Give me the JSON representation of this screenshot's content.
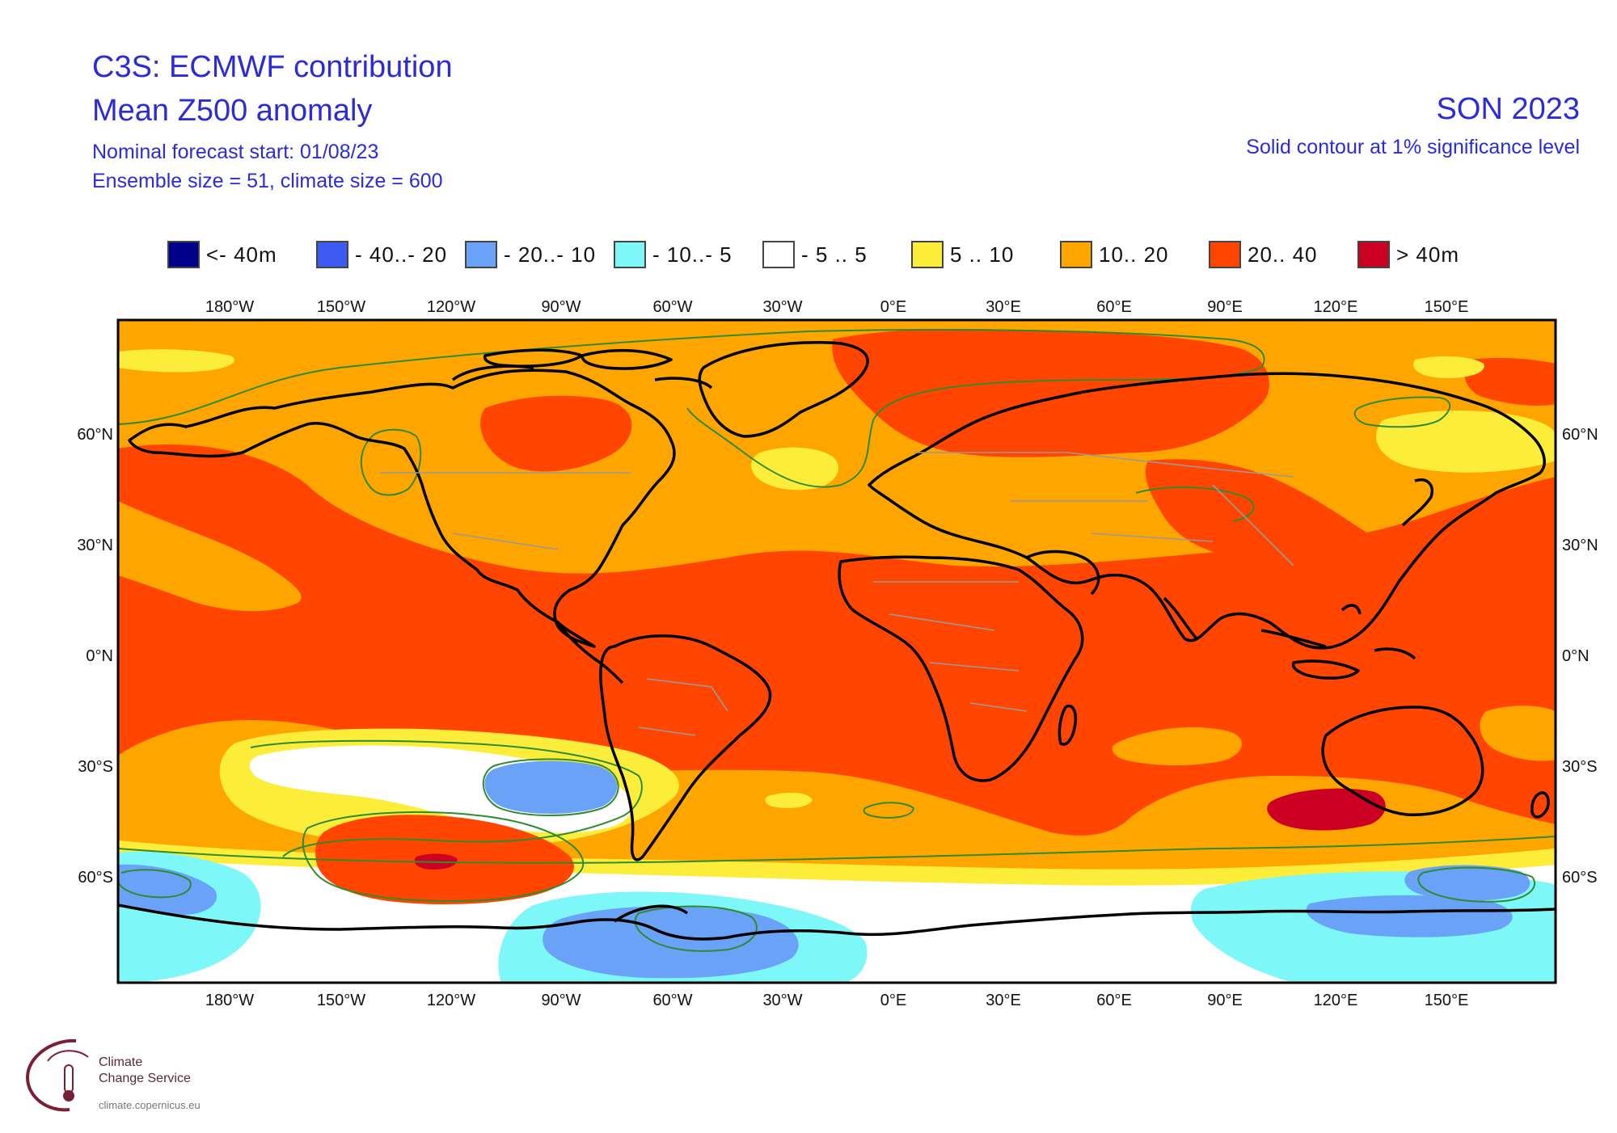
{
  "header": {
    "title_line1": "C3S: ECMWF contribution",
    "title_line2": "Mean Z500 anomaly",
    "forecast_start": "Nominal forecast start: 01/08/23",
    "ensemble_info": "Ensemble size = 51, climate size = 600",
    "season": "SON 2023",
    "significance_note": "Solid contour at 1% significance level"
  },
  "legend": [
    {
      "label": "<- 40m",
      "color": "#00008b"
    },
    {
      "label": "- 40..- 20",
      "color": "#3d5bf0"
    },
    {
      "label": "- 20..- 10",
      "color": "#6aa2f7"
    },
    {
      "label": "- 10..- 5",
      "color": "#7df7f7"
    },
    {
      "label": "- 5 .. 5",
      "color": "#ffffff"
    },
    {
      "label": "5 .. 10",
      "color": "#fced3a"
    },
    {
      "label": "10.. 20",
      "color": "#ffa500"
    },
    {
      "label": "20.. 40",
      "color": "#ff4500"
    },
    {
      "label": "> 40m",
      "color": "#cc0022"
    }
  ],
  "axes": {
    "lon_labels": [
      "180°W",
      "150°W",
      "120°W",
      "90°W",
      "60°W",
      "30°W",
      "0°E",
      "30°E",
      "60°E",
      "90°E",
      "120°E",
      "150°E"
    ],
    "lat_labels_left": [
      "60°N",
      "30°N",
      "0°N",
      "30°S",
      "60°S"
    ],
    "lat_labels_right": [
      "60°N",
      "30°N",
      "0°N",
      "30°S",
      "60°S"
    ]
  },
  "colors": {
    "land_outline": "#000000",
    "borders": "#9a9a9a",
    "significance_contour": "#2e8b2e",
    "text_blue": "#2b2bd9"
  },
  "logo": {
    "line1": "Climate",
    "line2": "Change Service",
    "url_text": "climate.copernicus.eu"
  }
}
